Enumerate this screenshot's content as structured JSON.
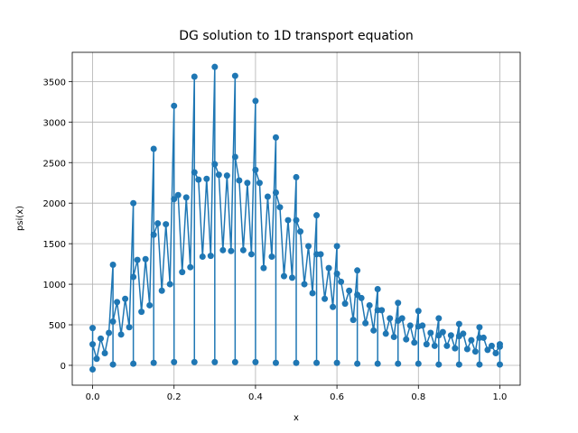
{
  "chart_data": {
    "type": "line",
    "title": "DG solution to 1D transport equation",
    "xlabel": "x",
    "ylabel": "psi(x)",
    "color": "#1f77b4",
    "grid": true,
    "xlim": [
      -0.05,
      1.05
    ],
    "ylim": [
      -245,
      3860
    ],
    "xticks": [
      {
        "value": 0,
        "label": "0.0"
      },
      0.2,
      0.4,
      0.6,
      0.8,
      {
        "value": 1,
        "label": "1.0"
      }
    ],
    "yticks": [
      0,
      500,
      1000,
      1500,
      2000,
      2500,
      3000,
      3500
    ],
    "x": [
      0,
      0,
      0,
      0.01,
      0.02,
      0.03,
      0.04,
      0.05,
      0.05,
      0.05,
      0.06,
      0.07,
      0.08,
      0.09,
      0.1,
      0.1,
      0.1,
      0.11,
      0.12,
      0.13,
      0.14,
      0.15,
      0.15,
      0.15,
      0.16,
      0.17,
      0.18,
      0.19,
      0.2,
      0.2,
      0.2,
      0.21,
      0.22,
      0.23,
      0.24,
      0.25,
      0.25,
      0.25,
      0.26,
      0.27,
      0.28,
      0.29,
      0.3,
      0.3,
      0.3,
      0.31,
      0.32,
      0.33,
      0.34,
      0.35,
      0.35,
      0.35,
      0.36,
      0.37,
      0.38,
      0.39,
      0.4,
      0.4,
      0.4,
      0.41,
      0.42,
      0.43,
      0.44,
      0.45,
      0.45,
      0.45,
      0.46,
      0.47,
      0.48,
      0.49,
      0.5,
      0.5,
      0.5,
      0.51,
      0.52,
      0.53,
      0.54,
      0.55,
      0.55,
      0.55,
      0.56,
      0.57,
      0.58,
      0.59,
      0.6,
      0.6,
      0.6,
      0.61,
      0.62,
      0.63,
      0.64,
      0.65,
      0.65,
      0.65,
      0.66,
      0.67,
      0.68,
      0.69,
      0.7,
      0.7,
      0.7,
      0.71,
      0.72,
      0.73,
      0.74,
      0.75,
      0.75,
      0.75,
      0.76,
      0.77,
      0.78,
      0.79,
      0.8,
      0.8,
      0.8,
      0.81,
      0.82,
      0.83,
      0.84,
      0.85,
      0.85,
      0.85,
      0.86,
      0.87,
      0.88,
      0.89,
      0.9,
      0.9,
      0.9,
      0.91,
      0.92,
      0.93,
      0.94,
      0.95,
      0.95,
      0.95,
      0.96,
      0.97,
      0.98,
      0.99,
      1,
      1,
      1
    ],
    "values": [
      460,
      -50,
      260,
      80,
      330,
      150,
      400,
      1240,
      10,
      540,
      780,
      380,
      820,
      470,
      2000,
      20,
      1090,
      1300,
      660,
      1310,
      740,
      2670,
      30,
      1610,
      1750,
      920,
      1740,
      1000,
      3200,
      40,
      2050,
      2100,
      1150,
      2070,
      1210,
      3560,
      40,
      2380,
      2290,
      1340,
      2300,
      1350,
      3680,
      40,
      2480,
      2350,
      1420,
      2340,
      1410,
      3570,
      40,
      2570,
      2280,
      1420,
      2250,
      1370,
      3260,
      40,
      2410,
      2250,
      1200,
      2080,
      1340,
      2810,
      30,
      2130,
      1950,
      1100,
      1790,
      1080,
      2320,
      30,
      1790,
      1650,
      1000,
      1470,
      890,
      1850,
      30,
      1370,
      1370,
      820,
      1200,
      720,
      1470,
      30,
      1130,
      1030,
      760,
      920,
      560,
      1170,
      20,
      870,
      830,
      520,
      740,
      430,
      940,
      20,
      680,
      680,
      390,
      580,
      350,
      770,
      20,
      550,
      580,
      320,
      490,
      280,
      670,
      20,
      480,
      490,
      260,
      400,
      240,
      580,
      10,
      370,
      410,
      240,
      370,
      210,
      510,
      10,
      360,
      390,
      200,
      310,
      170,
      470,
      10,
      340,
      340,
      190,
      240,
      150,
      260,
      10,
      230
    ]
  }
}
